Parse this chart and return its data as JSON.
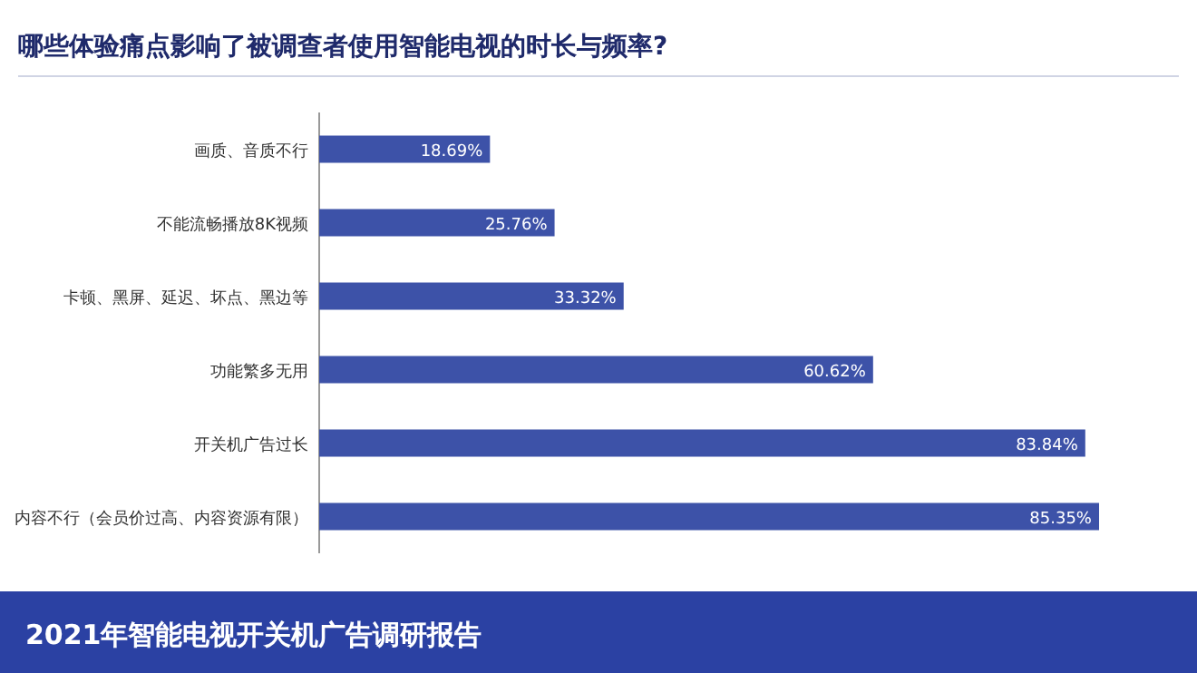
{
  "chart_data": {
    "type": "bar",
    "orientation": "horizontal",
    "title": "哪些体验痛点影响了被调查者使用智能电视的时长与频率?",
    "categories": [
      "画质、音质不行",
      "不能流畅播放8K视频",
      "卡顿、黑屏、延迟、坏点、黑边等",
      "功能繁多无用",
      "开关机广告过长",
      "内容不行（会员价过高、内容资源有限）"
    ],
    "values": [
      18.69,
      25.76,
      33.32,
      60.62,
      83.84,
      85.35
    ],
    "value_labels": [
      "18.69%",
      "25.76%",
      "33.32%",
      "60.62%",
      "83.84%",
      "85.35%"
    ],
    "color": "#3d52a8",
    "annotations": [
      "2021年智能电视开关机广告调研报告"
    ]
  }
}
